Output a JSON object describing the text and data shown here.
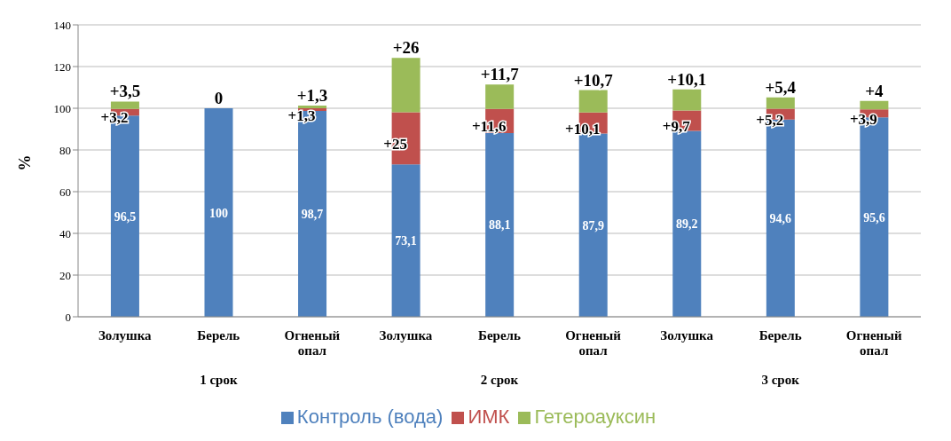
{
  "chart_data": {
    "type": "bar",
    "stacked": true,
    "ylabel": "%",
    "categories": [
      "Золушка",
      "Берель",
      "Огненый опал",
      "Золушка",
      "Берель",
      "Огненый опал",
      "Золушка",
      "Берель",
      "Огненый опал"
    ],
    "series": [
      {
        "name": "Контроль (вода)",
        "color": "#4f81bd",
        "values": [
          96.5,
          100,
          98.7,
          73.1,
          88.1,
          87.9,
          89.2,
          94.6,
          95.6
        ],
        "value_labels": [
          "96,5",
          "100",
          "98,7",
          "73,1",
          "88,1",
          "87,9",
          "89,2",
          "94,6",
          "95,6"
        ]
      },
      {
        "name": "ИМК",
        "color": "#c0504d",
        "values": [
          3.2,
          0,
          1.3,
          25,
          11.6,
          10.1,
          9.7,
          5.2,
          3.9
        ],
        "value_labels": [
          "+3,2",
          null,
          "+1,3",
          "+25",
          "+11,6",
          "+10,1",
          "+9,7",
          "+5,2",
          "+3,9"
        ]
      },
      {
        "name": "Гетероауксин",
        "color": "#9bbb59",
        "values": [
          3.5,
          0,
          1.3,
          26,
          11.7,
          10.7,
          10.1,
          5.4,
          4
        ],
        "value_labels": [
          "+3,5",
          "0",
          "+1,3",
          "+26",
          "+11,7",
          "+10,7",
          "+10,1",
          "+5,4",
          "+4"
        ]
      }
    ],
    "annotations": [
      "1 срок",
      "2 срок",
      "3 срок"
    ],
    "ylim": [
      0,
      140
    ],
    "yticks": [
      0,
      20,
      40,
      60,
      80,
      100,
      120,
      140
    ],
    "grid": "y",
    "legend": "bottom"
  }
}
